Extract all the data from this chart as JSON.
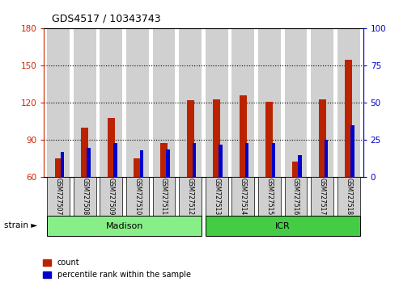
{
  "title": "GDS4517 / 10343743",
  "samples": [
    "GSM727507",
    "GSM727508",
    "GSM727509",
    "GSM727510",
    "GSM727511",
    "GSM727512",
    "GSM727513",
    "GSM727514",
    "GSM727515",
    "GSM727516",
    "GSM727517",
    "GSM727518"
  ],
  "count_values": [
    75,
    100,
    108,
    75,
    88,
    122,
    123,
    126,
    121,
    73,
    123,
    155
  ],
  "percentile_values": [
    17,
    20,
    23,
    18,
    19,
    23,
    22,
    23,
    23,
    15,
    25,
    35
  ],
  "ylim_left": [
    60,
    180
  ],
  "ylim_right": [
    0,
    100
  ],
  "yticks_left": [
    60,
    90,
    120,
    150,
    180
  ],
  "yticks_right": [
    0,
    25,
    50,
    75,
    100
  ],
  "count_color": "#bb2200",
  "percentile_color": "#0000cc",
  "bar_bg_color": "#d0d0d0",
  "madison_color": "#88ee88",
  "icr_color": "#44cc44",
  "strain_label": "strain",
  "madison_label": "Madison",
  "icr_label": "ICR",
  "legend_count": "count",
  "legend_percentile": "percentile rank within the sample",
  "axis_left_color": "#cc2200",
  "axis_right_color": "#0000cc"
}
